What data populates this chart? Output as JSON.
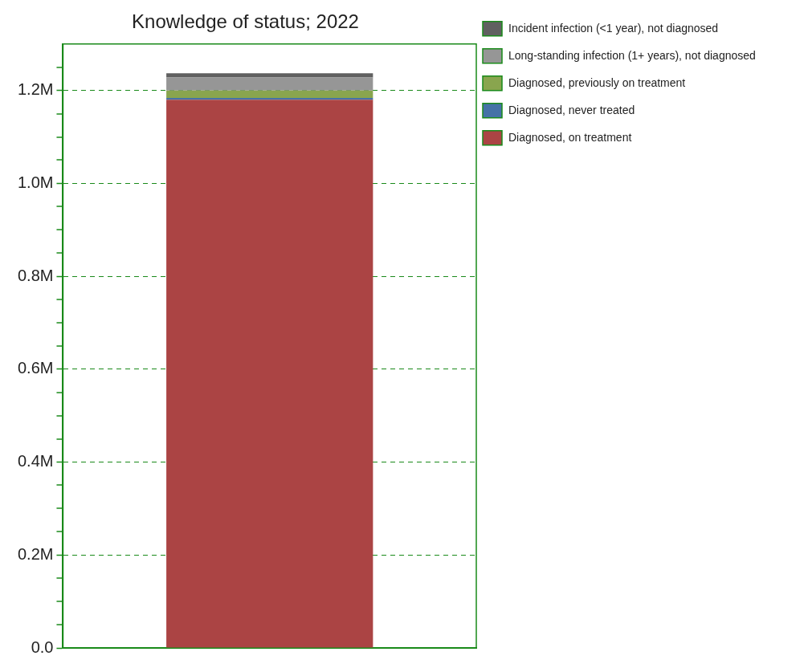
{
  "chart_data": {
    "type": "bar",
    "title": "Knowledge of status; 2022",
    "categories": [
      null
    ],
    "stacked": true,
    "series": [
      {
        "name": "Diagnosed, on treatment",
        "color": "#ab4444",
        "values": [
          1180000
        ]
      },
      {
        "name": "Diagnosed, never treated",
        "color": "#4572a7",
        "values": [
          4000
        ]
      },
      {
        "name": "Diagnosed, previously on treatment",
        "color": "#89a54e",
        "values": [
          16000
        ]
      },
      {
        "name": "Long-standing infection (1+ years), not diagnosed",
        "color": "#969696",
        "values": [
          28000
        ]
      },
      {
        "name": "Incident infection (<1 year), not diagnosed",
        "color": "#606060",
        "values": [
          9000
        ]
      }
    ],
    "ylim": [
      0,
      1300000
    ],
    "yticks": [
      {
        "value": 0,
        "label": "0.0"
      },
      {
        "value": 50000,
        "label": null
      },
      {
        "value": 100000,
        "label": null
      },
      {
        "value": 150000,
        "label": null
      },
      {
        "value": 200000,
        "label": "0.2M"
      },
      {
        "value": 250000,
        "label": null
      },
      {
        "value": 300000,
        "label": null
      },
      {
        "value": 350000,
        "label": null
      },
      {
        "value": 400000,
        "label": "0.4M"
      },
      {
        "value": 450000,
        "label": null
      },
      {
        "value": 500000,
        "label": null
      },
      {
        "value": 550000,
        "label": null
      },
      {
        "value": 600000,
        "label": "0.6M"
      },
      {
        "value": 650000,
        "label": null
      },
      {
        "value": 700000,
        "label": null
      },
      {
        "value": 750000,
        "label": null
      },
      {
        "value": 800000,
        "label": "0.8M"
      },
      {
        "value": 850000,
        "label": null
      },
      {
        "value": 900000,
        "label": null
      },
      {
        "value": 950000,
        "label": null
      },
      {
        "value": 1000000,
        "label": "1.0M"
      },
      {
        "value": 1050000,
        "label": null
      },
      {
        "value": 1100000,
        "label": null
      },
      {
        "value": 1150000,
        "label": null
      },
      {
        "value": 1200000,
        "label": "1.2M"
      },
      {
        "value": 1250000,
        "label": null
      }
    ],
    "grid": "y",
    "legend": "top right",
    "tick_labels": "y"
  }
}
